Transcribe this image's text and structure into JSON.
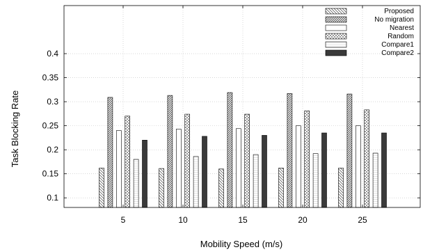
{
  "chart_data": {
    "type": "bar",
    "categories": [
      "5",
      "10",
      "15",
      "20",
      "25"
    ],
    "series": [
      {
        "name": "Proposed",
        "values": [
          0.162,
          0.161,
          0.16,
          0.162,
          0.162
        ],
        "pattern": "hatch-back"
      },
      {
        "name": "No migration",
        "values": [
          0.309,
          0.313,
          0.319,
          0.317,
          0.316
        ],
        "pattern": "hatch-forward-dense"
      },
      {
        "name": "Nearest",
        "values": [
          0.24,
          0.243,
          0.244,
          0.25,
          0.25
        ],
        "pattern": "empty"
      },
      {
        "name": "Random",
        "values": [
          0.27,
          0.274,
          0.274,
          0.281,
          0.283
        ],
        "pattern": "checker"
      },
      {
        "name": "Compare1",
        "values": [
          0.18,
          0.186,
          0.19,
          0.192,
          0.193
        ],
        "pattern": "light-lines"
      },
      {
        "name": "Compare2",
        "values": [
          0.22,
          0.228,
          0.23,
          0.235,
          0.235
        ],
        "pattern": "solid-dark"
      }
    ],
    "xlabel": "Mobility Speed (m/s)",
    "ylabel": "Task Blocking Rate",
    "ylim": [
      0.08,
      0.5
    ],
    "yticks": [
      "0.1",
      "0.15",
      "0.2",
      "0.25",
      "0.3",
      "0.35",
      "0.4"
    ],
    "grid": true,
    "legend_position": "top-right",
    "colors": {
      "dark_bar": "#3a3a3a",
      "stroke": "#000000",
      "grid": "#bfbfbf"
    }
  }
}
